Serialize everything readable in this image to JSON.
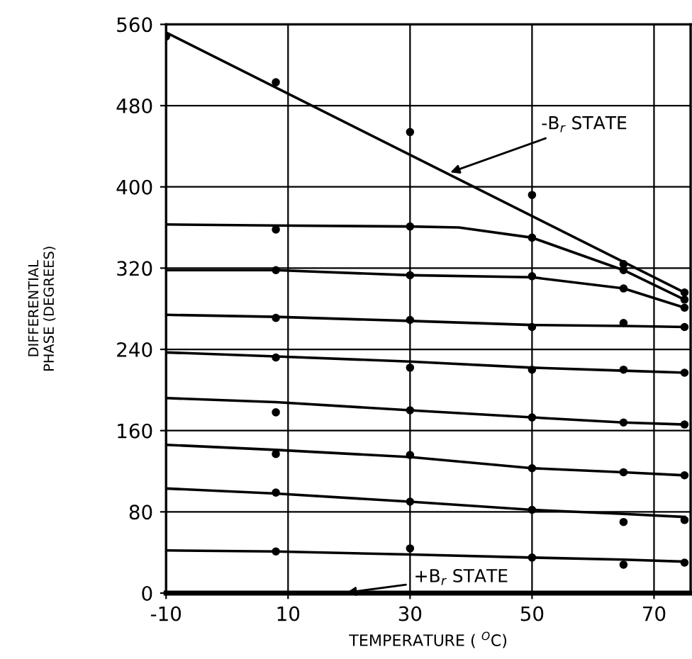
{
  "chart_data": {
    "type": "line",
    "xlabel": "TEMPERATURE ( $^{O}$C)",
    "ylabel": "DIFFERENTIAL\nPHASE (DEGREES)",
    "xlim": [
      -10,
      76
    ],
    "xticks": [
      -10,
      10,
      30,
      50,
      70
    ],
    "ylim": [
      0,
      560
    ],
    "yticks": [
      0,
      80,
      160,
      240,
      320,
      400,
      480,
      560
    ],
    "grid": true,
    "marker": "none",
    "line_style": "solid",
    "series": [
      {
        "color": "#000000",
        "x": [
          -10,
          75
        ],
        "values": [
          552,
          296
        ]
      },
      {
        "color": "#000000",
        "x": [
          -10,
          8,
          30,
          38,
          50,
          65,
          75
        ],
        "values": [
          363,
          362,
          361,
          360,
          350,
          318,
          289
        ]
      },
      {
        "color": "#000000",
        "x": [
          -10,
          8,
          30,
          50,
          65,
          75
        ],
        "values": [
          318,
          318,
          313,
          311,
          300,
          281
        ]
      },
      {
        "color": "#000000",
        "x": [
          -10,
          8,
          30,
          50,
          65,
          75
        ],
        "values": [
          274,
          272,
          268,
          264,
          263,
          262
        ]
      },
      {
        "color": "#000000",
        "x": [
          -10,
          8,
          30,
          50,
          65,
          75
        ],
        "values": [
          237,
          233,
          228,
          222,
          219,
          217
        ]
      },
      {
        "color": "#000000",
        "x": [
          -10,
          8,
          30,
          50,
          65,
          75
        ],
        "values": [
          192,
          188,
          180,
          173,
          168,
          166
        ]
      },
      {
        "color": "#000000",
        "x": [
          -10,
          8,
          30,
          50,
          65,
          75
        ],
        "values": [
          146,
          141,
          134,
          123,
          119,
          116
        ]
      },
      {
        "color": "#000000",
        "x": [
          -10,
          8,
          30,
          50,
          65,
          75
        ],
        "values": [
          103,
          98,
          90,
          82,
          78,
          75
        ]
      },
      {
        "color": "#000000",
        "x": [
          -10,
          8,
          30,
          50,
          65,
          75
        ],
        "values": [
          42,
          41,
          38,
          35,
          33,
          31
        ]
      },
      {
        "type": "scatter",
        "marker": "circle",
        "color": "#000000",
        "x": [
          -10,
          8,
          30,
          50,
          65,
          75,
          8,
          30,
          50,
          65,
          75,
          8,
          30,
          50,
          65,
          75,
          8,
          30,
          50,
          65,
          75,
          8,
          30,
          50,
          65,
          75,
          8,
          30,
          50,
          65,
          75,
          8,
          30,
          50,
          65,
          75,
          8,
          30,
          50,
          65,
          75,
          8,
          30,
          50,
          65,
          75
        ],
        "values": [
          548,
          503,
          454,
          392,
          324,
          296,
          358,
          361,
          350,
          318,
          289,
          318,
          313,
          312,
          300,
          281,
          271,
          269,
          262,
          266,
          262,
          232,
          222,
          220,
          220,
          217,
          178,
          180,
          173,
          168,
          166,
          137,
          136,
          123,
          119,
          116,
          99,
          90,
          82,
          70,
          72,
          41,
          44,
          35,
          28,
          30
        ]
      }
    ],
    "annotations": [
      {
        "text": "-B$_{r}$ STATE",
        "x": 36,
        "y": 413
      },
      "+B$_{r}$ STATE"
    ]
  }
}
